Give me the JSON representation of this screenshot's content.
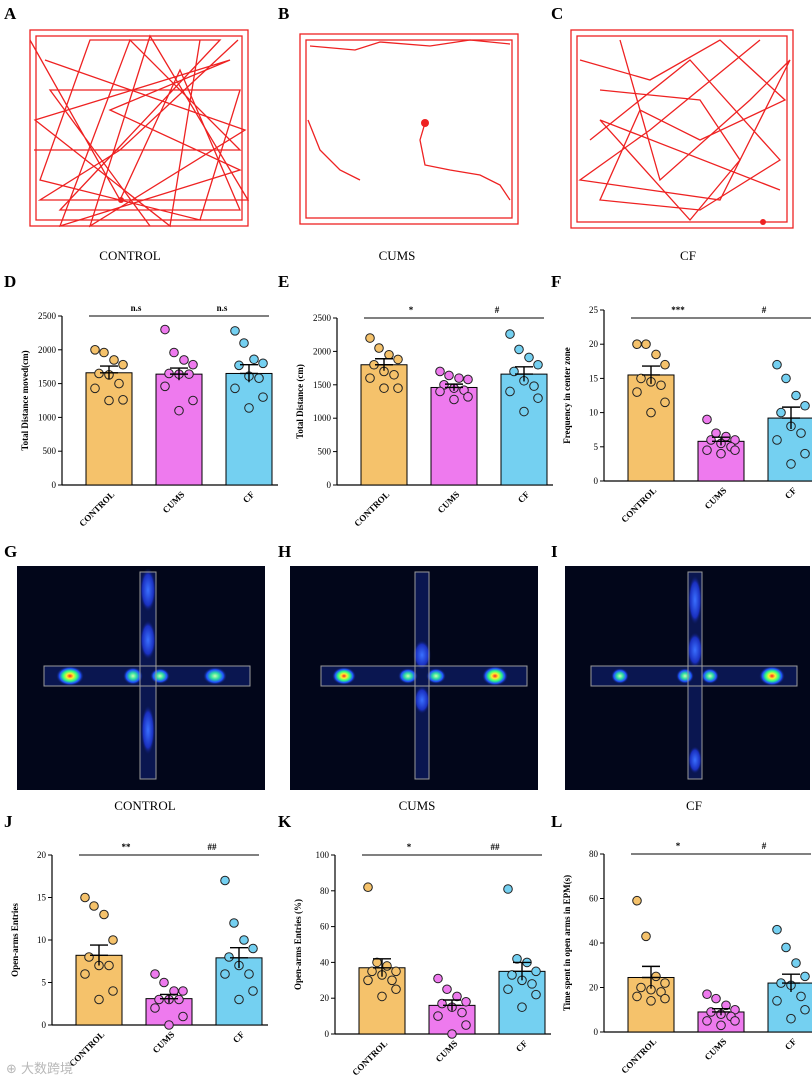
{
  "labels": [
    "A",
    "B",
    "C",
    "D",
    "E",
    "F",
    "G",
    "H",
    "I",
    "J",
    "K",
    "L"
  ],
  "groups": [
    "CONTROL",
    "CUMS",
    "CF"
  ],
  "colors": {
    "control": "#f5c26b",
    "cums": "#ee7aee",
    "cf": "#74d0f1",
    "track": "#ee2222",
    "heat_bg": "#02061a",
    "arm_outline": "#9a9a9a"
  },
  "watermark": "⊕ 大数跨境",
  "chart_data": [
    {
      "panel": "D",
      "type": "bar",
      "categories": [
        "CONTROL",
        "CUMS",
        "CF"
      ],
      "values": [
        1660,
        1640,
        1650
      ],
      "errors": [
        100,
        90,
        130
      ],
      "points": [
        [
          2000,
          1960,
          1850,
          1780,
          1650,
          1630,
          1500,
          1430,
          1260,
          1250
        ],
        [
          2300,
          1960,
          1850,
          1780,
          1650,
          1640,
          1640,
          1460,
          1250,
          1100
        ],
        [
          2280,
          2100,
          1860,
          1800,
          1770,
          1610,
          1580,
          1430,
          1300,
          1140
        ]
      ],
      "ylabel": "Total Distance moved(cm)",
      "ylim": [
        0,
        2500
      ],
      "yticks": [
        0,
        500,
        1000,
        1500,
        2000,
        2500
      ],
      "significance": [
        {
          "from": 0,
          "to": 1,
          "label": "n.s"
        },
        {
          "from": 1,
          "to": 2,
          "label": "n.s"
        }
      ]
    },
    {
      "panel": "E",
      "type": "bar",
      "categories": [
        "CONTROL",
        "CUMS",
        "CF"
      ],
      "values": [
        1800,
        1460,
        1660
      ],
      "errors": [
        90,
        50,
        110
      ],
      "points": [
        [
          2200,
          2050,
          1950,
          1880,
          1800,
          1700,
          1650,
          1600,
          1450,
          1450
        ],
        [
          1700,
          1640,
          1600,
          1580,
          1500,
          1450,
          1420,
          1400,
          1320,
          1280
        ],
        [
          2260,
          2030,
          1910,
          1800,
          1700,
          1560,
          1480,
          1400,
          1300,
          1100
        ]
      ],
      "ylabel": "Total Distance (cm)",
      "ylim": [
        0,
        2500
      ],
      "yticks": [
        0,
        500,
        1000,
        1500,
        2000,
        2500
      ],
      "significance": [
        {
          "from": 0,
          "to": 1,
          "label": "*"
        },
        {
          "from": 1,
          "to": 2,
          "label": "#"
        }
      ]
    },
    {
      "panel": "F",
      "type": "bar",
      "categories": [
        "CONTROL",
        "CUMS",
        "CF"
      ],
      "values": [
        15.5,
        5.8,
        9.2
      ],
      "errors": [
        1.3,
        0.6,
        1.6
      ],
      "points": [
        [
          20,
          20,
          18.5,
          17,
          15,
          14.5,
          14,
          13,
          11.5,
          10
        ],
        [
          9,
          7,
          6.5,
          6,
          6,
          5.5,
          5,
          4.5,
          4.5,
          4
        ],
        [
          17,
          15,
          12.5,
          11,
          10,
          8,
          7,
          6,
          4,
          2.5
        ]
      ],
      "ylabel": "Frequency in center zone",
      "ylim": [
        0,
        25
      ],
      "yticks": [
        0,
        5,
        10,
        15,
        20,
        25
      ],
      "significance": [
        {
          "from": 0,
          "to": 1,
          "label": "***"
        },
        {
          "from": 1,
          "to": 2,
          "label": "#"
        }
      ]
    },
    {
      "panel": "J",
      "type": "bar",
      "categories": [
        "CONTROL",
        "CUMS",
        "CF"
      ],
      "values": [
        8.2,
        3.1,
        7.9
      ],
      "errors": [
        1.2,
        0.5,
        1.2
      ],
      "points": [
        [
          15,
          14,
          13,
          10,
          8,
          7,
          7,
          6,
          4,
          3
        ],
        [
          6,
          5,
          4,
          4,
          3,
          3,
          3,
          2,
          1,
          0
        ],
        [
          17,
          12,
          10,
          9,
          8,
          7,
          6,
          6,
          4,
          3
        ]
      ],
      "ylabel": "Open-arms Entries",
      "ylim": [
        0,
        20
      ],
      "yticks": [
        0,
        5,
        10,
        15,
        20
      ],
      "significance": [
        {
          "from": 0,
          "to": 1,
          "label": "**"
        },
        {
          "from": 1,
          "to": 2,
          "label": "##"
        }
      ]
    },
    {
      "panel": "K",
      "type": "bar",
      "categories": [
        "CONTROL",
        "CUMS",
        "CF"
      ],
      "values": [
        37,
        16,
        35
      ],
      "errors": [
        5,
        3,
        5
      ],
      "points": [
        [
          82,
          40,
          38,
          35,
          35,
          33,
          30,
          30,
          25,
          21
        ],
        [
          31,
          25,
          21,
          18,
          17,
          15,
          12,
          10,
          5,
          0
        ],
        [
          81,
          42,
          40,
          35,
          33,
          30,
          28,
          25,
          22,
          15
        ]
      ],
      "ylabel": "Open-arms Entries (%)",
      "ylim": [
        0,
        100
      ],
      "yticks": [
        0,
        20,
        40,
        60,
        80,
        100
      ],
      "significance": [
        {
          "from": 0,
          "to": 1,
          "label": "*"
        },
        {
          "from": 1,
          "to": 2,
          "label": "##"
        }
      ]
    },
    {
      "panel": "L",
      "type": "bar",
      "categories": [
        "CONTROL",
        "CUMS",
        "CF"
      ],
      "values": [
        24.5,
        9,
        22
      ],
      "errors": [
        5,
        1.5,
        4
      ],
      "points": [
        [
          59,
          43,
          25,
          22,
          20,
          19,
          18,
          16,
          15,
          14
        ],
        [
          17,
          15,
          12,
          10,
          9,
          8,
          7,
          5,
          5,
          3
        ],
        [
          46,
          38,
          31,
          25,
          22,
          21,
          16,
          14,
          10,
          6
        ]
      ],
      "ylabel": "Time spent in open arms in EPM(s)",
      "ylim": [
        0,
        80
      ],
      "yticks": [
        0,
        20,
        40,
        60,
        80
      ],
      "significance": [
        {
          "from": 0,
          "to": 1,
          "label": "*"
        },
        {
          "from": 1,
          "to": 2,
          "label": "#"
        }
      ]
    }
  ]
}
